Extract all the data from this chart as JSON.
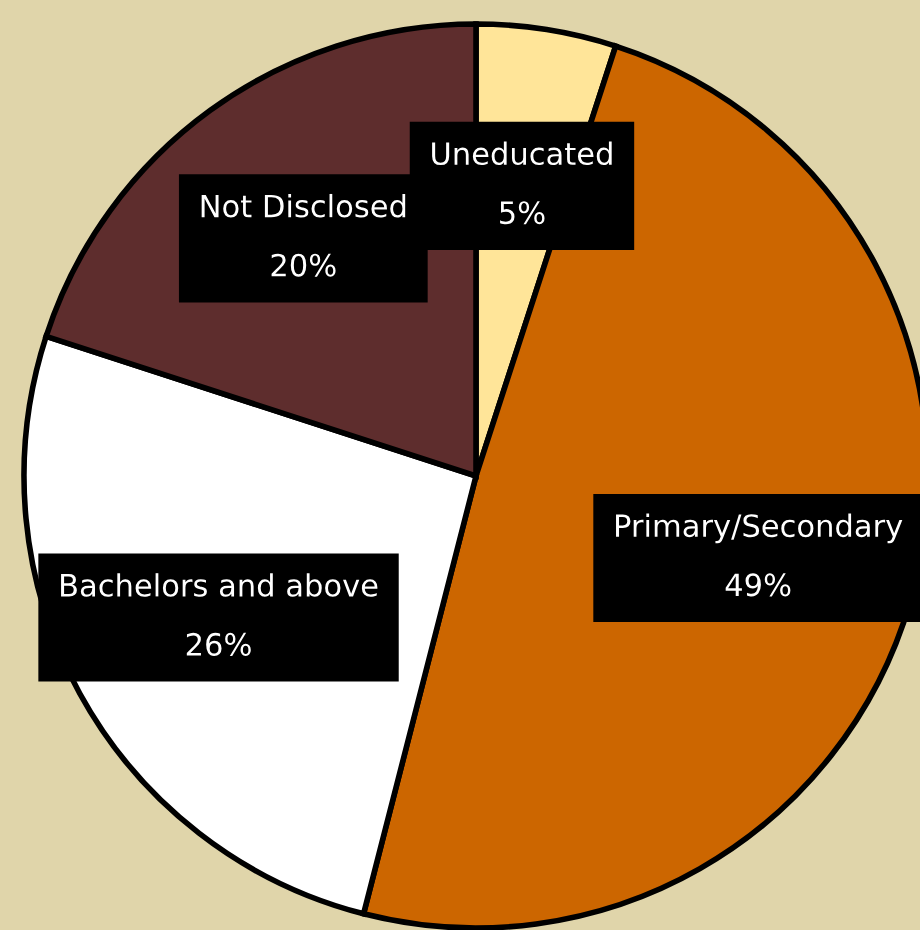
{
  "chart_data": {
    "type": "pie",
    "categories": [
      "Uneducated",
      "Primary/Secondary",
      "Bachelors and above",
      "Not Disclosed"
    ],
    "values": [
      5,
      49,
      26,
      20
    ],
    "value_labels": [
      "5%",
      "49%",
      "26%",
      "20%"
    ],
    "colors": [
      "#ffe599",
      "#cc6600",
      "#ffffff",
      "#5e2d2d"
    ]
  }
}
